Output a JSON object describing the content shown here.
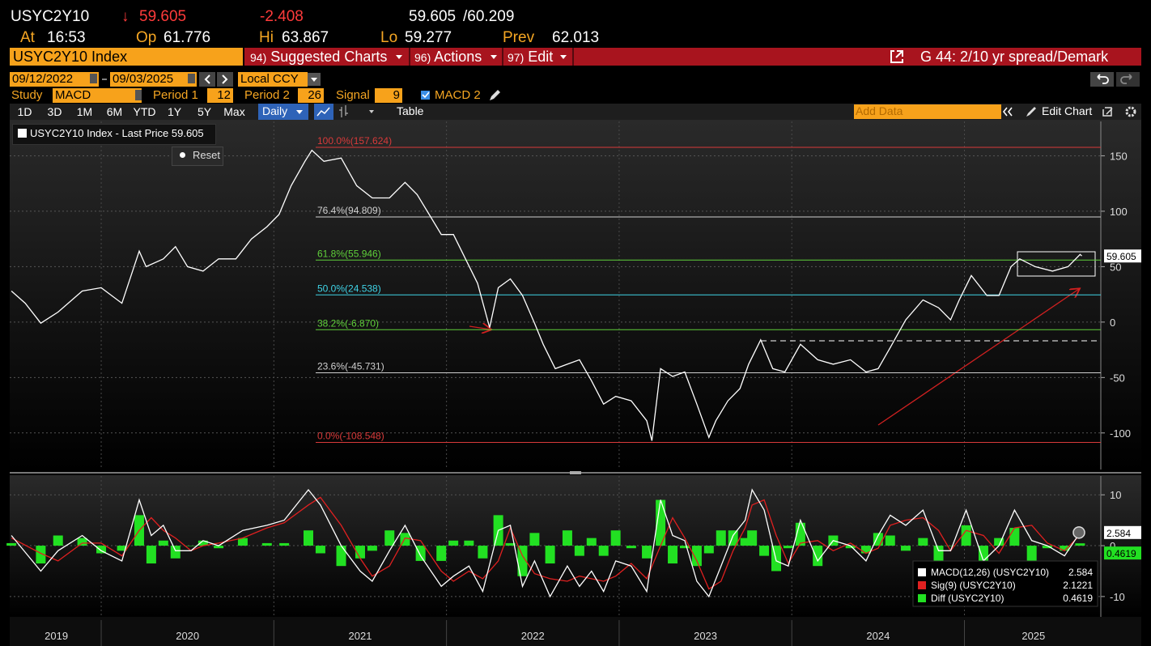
{
  "header": {
    "ticker": "USYC2Y10",
    "direction": "↓",
    "last": "59.605",
    "change": "-2.408",
    "bid": "59.605",
    "ask": "/60.209",
    "at_label": "At",
    "at": "16:53",
    "open_label": "Op",
    "open": "61.776",
    "high_label": "Hi",
    "high": "63.867",
    "low_label": "Lo",
    "low": "59.277",
    "prev_label": "Prev",
    "prev": "62.013"
  },
  "menu": {
    "security": "USYC2Y10 Index",
    "items": [
      {
        "code": "94)",
        "label": "Suggested Charts"
      },
      {
        "code": "96)",
        "label": "Actions"
      },
      {
        "code": "97)",
        "label": "Edit"
      }
    ],
    "chart_name": "G 44: 2/10 yr spread/Demark"
  },
  "controls": {
    "start_date": "09/12/2022",
    "end_date": "09/03/2025",
    "currency": "Local CCY",
    "study_label": "Study",
    "study": "MACD",
    "period1_label": "Period 1",
    "period1": "12",
    "period2_label": "Period 2",
    "period2": "26",
    "signal_label": "Signal",
    "signal": "9",
    "macd2": "MACD 2"
  },
  "toolbar": {
    "ranges": [
      "1D",
      "3D",
      "1M",
      "6M",
      "YTD",
      "1Y",
      "5Y",
      "Max"
    ],
    "frequency": "Daily",
    "table": "Table",
    "add_data": "Add Data",
    "edit_chart": "Edit Chart"
  },
  "chart_data": [
    {
      "type": "line",
      "reset": "Reset",
      "x": [
        2019.48,
        2019.56,
        2019.65,
        2019.75,
        2019.89,
        2020.0,
        2020.12,
        2020.19,
        2020.22,
        2020.26,
        2020.36,
        2020.43,
        2020.5,
        2020.59,
        2020.68,
        2020.78,
        2020.87,
        2020.96,
        2021.03,
        2021.1,
        2021.18,
        2021.22,
        2021.29,
        2021.39,
        2021.48,
        2021.57,
        2021.67,
        2021.76,
        2021.83,
        2021.9,
        2021.97,
        2022.04,
        2022.11,
        2022.18,
        2022.25,
        2022.3,
        2022.37,
        2022.44,
        2022.51,
        2022.56,
        2022.63,
        2022.7,
        2022.77,
        2022.84,
        2022.91,
        2022.98,
        2023.07,
        2023.16,
        2023.19,
        2023.24,
        2023.31,
        2023.38,
        2023.45,
        2023.52,
        2023.56,
        2023.63,
        2023.7,
        2023.75,
        2023.82,
        2023.89,
        2023.96,
        2024.05,
        2024.15,
        2024.24,
        2024.34,
        2024.43,
        2024.5,
        2024.57,
        2024.66,
        2024.76,
        2024.85,
        2024.92,
        2024.97,
        2025.04,
        2025.13,
        2025.2,
        2025.27,
        2025.32,
        2025.41,
        2025.51,
        2025.6,
        2025.67,
        2025.68
      ],
      "series": [
        {
          "name": "USYC2Y10 Index - Last Price",
          "color": "#ffffff",
          "values": [
            28,
            17,
            -1,
            9,
            28,
            31,
            17,
            50,
            64,
            50,
            57,
            68,
            50,
            46,
            57,
            57,
            75,
            86,
            97,
            123,
            145,
            155,
            145,
            148,
            123,
            112,
            112,
            126,
            115,
            97,
            79,
            79,
            57,
            35,
            -5,
            31,
            39,
            24,
            -1,
            -20,
            -42,
            -38,
            -34,
            -53,
            -74,
            -67,
            -71,
            -89,
            -107,
            -42,
            -49,
            -45,
            -74,
            -104,
            -89,
            -71,
            -60,
            -38,
            -16,
            -42,
            -45,
            -20,
            -34,
            -38,
            -34,
            -45,
            -42,
            -23,
            2,
            20,
            13,
            2,
            20,
            42,
            24,
            24,
            50,
            57,
            50,
            46,
            50,
            61,
            59.605
          ]
        }
      ],
      "xlim": [
        2019.47,
        2025.79
      ],
      "ylim": [
        -133,
        181
      ],
      "yticks": [
        -100,
        -50,
        0,
        50,
        100,
        150
      ],
      "grid": true,
      "year_lines": [
        2020,
        2021,
        2022,
        2023,
        2024,
        2025
      ],
      "xticks": [
        {
          "value": 2019.74,
          "label": "2019"
        },
        {
          "value": 2020.5,
          "label": "2020"
        },
        {
          "value": 2021.5,
          "label": "2021"
        },
        {
          "value": 2022.5,
          "label": "2022"
        },
        {
          "value": 2023.5,
          "label": "2023"
        },
        {
          "value": 2024.5,
          "label": "2024"
        },
        {
          "value": 2025.4,
          "label": "2025"
        }
      ],
      "fib_levels": [
        {
          "label": "100.0%(157.624)",
          "value": 157.624,
          "color": "#d83a3a"
        },
        {
          "label": "76.4%(94.809)",
          "value": 94.809,
          "color": "#cfcfcf"
        },
        {
          "label": "61.8%(55.946)",
          "value": 55.946,
          "color": "#5fd03a"
        },
        {
          "label": "50.0%(24.538)",
          "value": 24.538,
          "color": "#3fd3e6"
        },
        {
          "label": "38.2%(-6.870)",
          "value": -6.87,
          "color": "#5fd03a"
        },
        {
          "label": "23.6%(-45.731)",
          "value": -45.731,
          "color": "#cfcfcf"
        },
        {
          "label": "0.0%(-108.548)",
          "value": -108.548,
          "color": "#d83a3a"
        }
      ]
    },
    {
      "type": "macd",
      "x": [
        2019.48,
        2019.65,
        2019.75,
        2019.89,
        2020.0,
        2020.12,
        2020.22,
        2020.29,
        2020.36,
        2020.43,
        2020.52,
        2020.59,
        2020.68,
        2020.82,
        2020.96,
        2021.06,
        2021.2,
        2021.27,
        2021.39,
        2021.5,
        2021.57,
        2021.67,
        2021.76,
        2021.85,
        2021.97,
        2022.04,
        2022.13,
        2022.21,
        2022.3,
        2022.37,
        2022.44,
        2022.51,
        2022.6,
        2022.7,
        2022.77,
        2022.84,
        2022.91,
        2022.98,
        2023.07,
        2023.16,
        2023.24,
        2023.31,
        2023.38,
        2023.45,
        2023.52,
        2023.59,
        2023.66,
        2023.73,
        2023.77,
        2023.84,
        2023.91,
        2023.98,
        2024.05,
        2024.15,
        2024.24,
        2024.34,
        2024.43,
        2024.5,
        2024.57,
        2024.66,
        2024.76,
        2024.85,
        2024.92,
        2025.01,
        2025.11,
        2025.2,
        2025.29,
        2025.39,
        2025.48,
        2025.58,
        2025.67
      ],
      "series": [
        {
          "name": "MACD(12,26) (USYC2Y10)",
          "color": "#ffffff",
          "values": [
            2,
            -5,
            -1,
            2,
            -1,
            -3,
            9,
            2,
            4,
            -1,
            -1,
            1,
            0,
            3,
            4,
            5,
            11,
            8,
            0,
            -5,
            -7,
            -1,
            4,
            -2,
            -8,
            -6,
            -4,
            -9,
            3,
            4,
            -8,
            -3,
            -10,
            -4,
            -8,
            -5,
            -9,
            -3,
            -4,
            -9,
            9,
            2,
            1,
            -7,
            -10,
            -4,
            2,
            5,
            11,
            7,
            -3,
            -4,
            5,
            -3,
            1,
            0,
            -3,
            2,
            6,
            4,
            7,
            -1,
            -1,
            7,
            -3,
            0,
            7,
            1,
            0,
            -2,
            2.584
          ]
        },
        {
          "name": "Sig(9) (USYC2Y10)",
          "color": "#e02020",
          "values": [
            1.5,
            -1.5,
            -3,
            0.5,
            0.5,
            -2,
            3,
            5.5,
            3,
            1.5,
            -1,
            0,
            0.5,
            1.5,
            3.5,
            4.5,
            8,
            9.5,
            4,
            -2.5,
            -6,
            -4,
            1.5,
            1,
            -5,
            -7,
            -5,
            -6.5,
            -3,
            3.5,
            -2,
            -5.5,
            -6.5,
            -7,
            -6,
            -6.5,
            -7,
            -6,
            -3.5,
            -6.5,
            0,
            5.5,
            1.5,
            -3,
            -8.5,
            -7,
            -1,
            3.5,
            8,
            9,
            2,
            -3.5,
            0.5,
            1,
            -1,
            0.5,
            -1.5,
            -0.5,
            4,
            5,
            5.5,
            3,
            -1,
            3,
            2,
            -1.5,
            3.5,
            4,
            0.5,
            -1,
            2.1221
          ]
        },
        {
          "name": "Diff (USYC2Y10)",
          "color": "#22e022",
          "values": [
            0.5,
            -3.5,
            2,
            1.5,
            -1.5,
            -1,
            6,
            -3.5,
            1,
            -2.5,
            0,
            1,
            -0.5,
            1.5,
            0.5,
            0.5,
            3,
            -1.5,
            -4,
            -2.5,
            -1,
            3,
            2.5,
            -3,
            -3,
            1,
            1,
            -2.5,
            6,
            0.5,
            -6,
            2.5,
            -3.5,
            3,
            -2,
            1.5,
            -2,
            3,
            -0.5,
            -2.5,
            9,
            -3.5,
            -0.5,
            -4,
            -1.5,
            3,
            3,
            1.5,
            3,
            -2,
            -5,
            -0.5,
            4.5,
            -4,
            2,
            -0.5,
            -1.5,
            2.5,
            2,
            -1,
            1.5,
            -4,
            0,
            4,
            -5,
            1.5,
            3.5,
            -3,
            -0.5,
            -1,
            0.4619
          ]
        }
      ],
      "xlim": [
        2019.47,
        2025.79
      ],
      "ylim": [
        -14,
        13.7
      ],
      "yticks": [
        -10,
        0,
        10
      ],
      "grid": true
    }
  ]
}
